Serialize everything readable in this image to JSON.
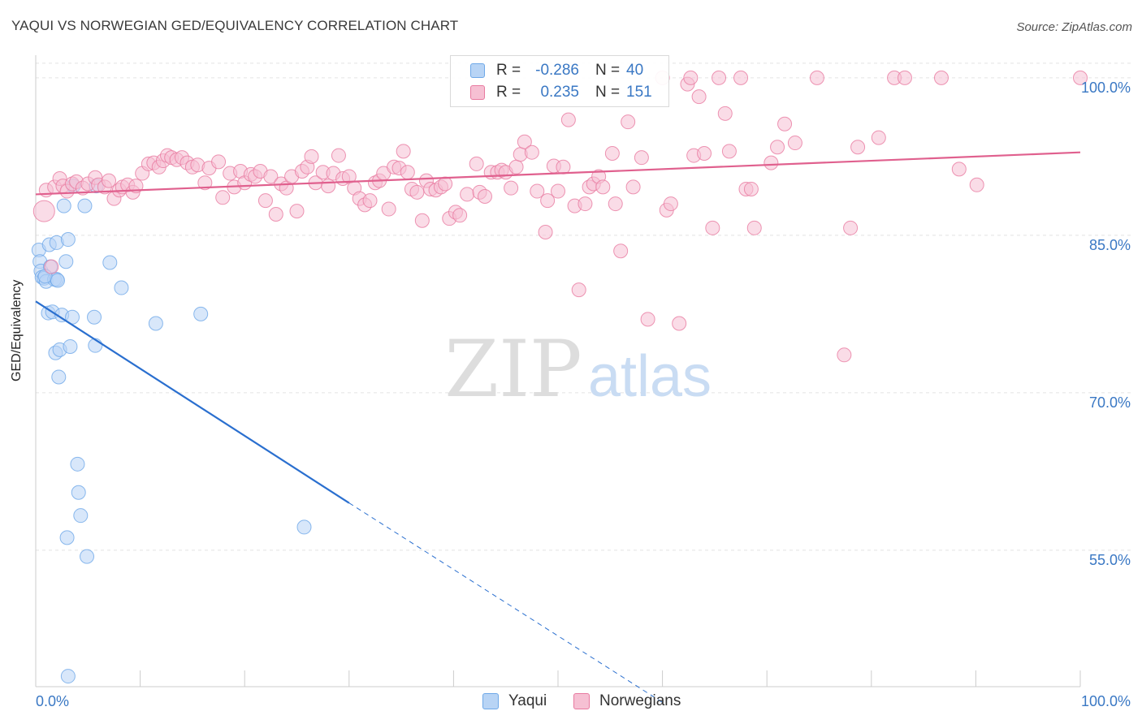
{
  "title": "YAQUI VS NORWEGIAN GED/EQUIVALENCY CORRELATION CHART",
  "source": "Source: ZipAtlas.com",
  "watermark": {
    "zip": "ZIP",
    "atlas": "atlas"
  },
  "colors": {
    "blue": "#6ea8e8",
    "blue_fill": "#b8d4f5",
    "blue_line": "#2a6fcf",
    "pink": "#e87aa0",
    "pink_fill": "#f6c0d3",
    "pink_line": "#e0608e",
    "axis_text": "#3a78c4",
    "grid": "#e3e3e3"
  },
  "legend": {
    "rows": [
      {
        "r_label": "R =",
        "r_value": "-0.286",
        "n_label": "N =",
        "n_value": "40"
      },
      {
        "r_label": "R =",
        "r_value": "0.235",
        "n_label": "N =",
        "n_value": "151"
      }
    ]
  },
  "bottom_legend": {
    "yaqui": "Yaqui",
    "norwegians": "Norwegians"
  },
  "chart_data": {
    "type": "scatter",
    "title": "YAQUI VS NORWEGIAN GED/EQUIVALENCY CORRELATION CHART",
    "xlabel": "",
    "ylabel": "GED/Equivalency",
    "xlim": [
      0,
      100
    ],
    "ylim": [
      42,
      102
    ],
    "x_tick_labels": {
      "left": "0.0%",
      "right": "100.0%"
    },
    "y_ticks": [
      {
        "value": 55,
        "label": "55.0%"
      },
      {
        "value": 70,
        "label": "70.0%"
      },
      {
        "value": 85,
        "label": "85.0%"
      },
      {
        "value": 100,
        "label": "100.0%"
      }
    ],
    "grid": true,
    "series": [
      {
        "name": "Yaqui",
        "trend": {
          "x0": 0,
          "y0": 78.7,
          "x1": 30,
          "y1": 59.5,
          "dash_to_x": 60,
          "dash_to_y": 40.5
        },
        "points": [
          [
            0.3,
            83.6
          ],
          [
            0.4,
            82.5
          ],
          [
            0.5,
            81.6
          ],
          [
            0.6,
            81.0
          ],
          [
            0.8,
            80.9
          ],
          [
            1.0,
            80.6
          ],
          [
            1.2,
            77.6
          ],
          [
            1.3,
            84.1
          ],
          [
            1.4,
            82.0
          ],
          [
            1.6,
            77.7
          ],
          [
            1.8,
            80.8
          ],
          [
            1.9,
            73.8
          ],
          [
            2.0,
            84.3
          ],
          [
            2.0,
            80.8
          ],
          [
            2.2,
            71.5
          ],
          [
            2.3,
            74.1
          ],
          [
            2.5,
            77.4
          ],
          [
            2.7,
            87.8
          ],
          [
            2.9,
            82.5
          ],
          [
            3.1,
            84.6
          ],
          [
            3.3,
            74.4
          ],
          [
            3.5,
            77.2
          ],
          [
            3.6,
            89.7
          ],
          [
            4.0,
            63.2
          ],
          [
            4.1,
            60.5
          ],
          [
            4.3,
            58.3
          ],
          [
            4.7,
            87.8
          ],
          [
            4.9,
            54.4
          ],
          [
            3.0,
            56.2
          ],
          [
            3.1,
            43.0
          ],
          [
            5.6,
            77.2
          ],
          [
            5.7,
            74.5
          ],
          [
            5.8,
            89.7
          ],
          [
            7.1,
            82.4
          ],
          [
            8.2,
            80.0
          ],
          [
            11.5,
            76.6
          ],
          [
            15.8,
            77.5
          ],
          [
            25.7,
            57.2
          ],
          [
            0.9,
            81.1
          ],
          [
            2.1,
            80.7
          ]
        ]
      },
      {
        "name": "Norwegians",
        "trend": {
          "x0": 0,
          "y0": 88.9,
          "x1": 100,
          "y1": 92.9
        },
        "points": [
          [
            0.8,
            87.3
          ],
          [
            1.0,
            89.3
          ],
          [
            1.5,
            82.0
          ],
          [
            1.8,
            89.6
          ],
          [
            2.3,
            90.4
          ],
          [
            2.6,
            89.7
          ],
          [
            3.0,
            89.2
          ],
          [
            3.5,
            89.9
          ],
          [
            3.9,
            90.1
          ],
          [
            4.5,
            89.5
          ],
          [
            5.0,
            89.9
          ],
          [
            5.7,
            90.5
          ],
          [
            6.0,
            89.8
          ],
          [
            6.6,
            89.6
          ],
          [
            7.0,
            90.2
          ],
          [
            7.5,
            88.5
          ],
          [
            8.0,
            89.3
          ],
          [
            8.3,
            89.6
          ],
          [
            8.8,
            89.8
          ],
          [
            9.3,
            89.1
          ],
          [
            9.6,
            89.7
          ],
          [
            10.2,
            90.9
          ],
          [
            10.8,
            91.8
          ],
          [
            11.3,
            91.9
          ],
          [
            11.8,
            91.5
          ],
          [
            12.2,
            92.1
          ],
          [
            12.6,
            92.6
          ],
          [
            13.0,
            92.4
          ],
          [
            13.5,
            92.2
          ],
          [
            14.0,
            92.4
          ],
          [
            14.5,
            91.9
          ],
          [
            15.0,
            91.5
          ],
          [
            15.5,
            91.7
          ],
          [
            16.2,
            90.0
          ],
          [
            16.6,
            91.4
          ],
          [
            17.5,
            92.0
          ],
          [
            17.9,
            88.6
          ],
          [
            18.6,
            90.9
          ],
          [
            19.0,
            89.6
          ],
          [
            19.6,
            91.1
          ],
          [
            20.0,
            90.0
          ],
          [
            20.6,
            90.8
          ],
          [
            21.0,
            90.6
          ],
          [
            21.5,
            91.1
          ],
          [
            22.0,
            88.3
          ],
          [
            22.5,
            90.6
          ],
          [
            23.0,
            87.0
          ],
          [
            23.5,
            89.9
          ],
          [
            24.0,
            89.5
          ],
          [
            24.5,
            90.6
          ],
          [
            25.0,
            87.3
          ],
          [
            25.5,
            91.1
          ],
          [
            26.0,
            91.5
          ],
          [
            26.4,
            92.5
          ],
          [
            26.8,
            90.0
          ],
          [
            27.5,
            91.0
          ],
          [
            28.0,
            89.7
          ],
          [
            28.5,
            90.9
          ],
          [
            29.0,
            92.6
          ],
          [
            29.4,
            90.4
          ],
          [
            30.0,
            90.6
          ],
          [
            30.5,
            89.5
          ],
          [
            31.0,
            88.5
          ],
          [
            31.5,
            87.9
          ],
          [
            32.0,
            88.3
          ],
          [
            32.5,
            90.0
          ],
          [
            32.9,
            90.2
          ],
          [
            33.3,
            90.9
          ],
          [
            33.8,
            87.5
          ],
          [
            34.3,
            91.5
          ],
          [
            34.8,
            91.4
          ],
          [
            35.2,
            93.0
          ],
          [
            35.6,
            91.0
          ],
          [
            36.0,
            89.4
          ],
          [
            36.5,
            89.1
          ],
          [
            37.0,
            86.4
          ],
          [
            37.4,
            90.2
          ],
          [
            37.8,
            89.4
          ],
          [
            38.3,
            89.3
          ],
          [
            38.8,
            89.6
          ],
          [
            39.2,
            89.9
          ],
          [
            39.6,
            86.6
          ],
          [
            40.2,
            87.2
          ],
          [
            40.6,
            86.9
          ],
          [
            41.3,
            88.9
          ],
          [
            42.2,
            91.8
          ],
          [
            42.5,
            89.1
          ],
          [
            43.0,
            88.7
          ],
          [
            43.6,
            91.0
          ],
          [
            44.2,
            91.0
          ],
          [
            44.6,
            91.2
          ],
          [
            45.0,
            91.0
          ],
          [
            45.5,
            89.5
          ],
          [
            46.0,
            91.5
          ],
          [
            46.4,
            92.7
          ],
          [
            46.8,
            93.9
          ],
          [
            47.5,
            92.9
          ],
          [
            48.0,
            89.2
          ],
          [
            48.8,
            85.3
          ],
          [
            49.0,
            88.3
          ],
          [
            49.6,
            91.6
          ],
          [
            50.0,
            89.2
          ],
          [
            50.5,
            91.5
          ],
          [
            51.0,
            96.0
          ],
          [
            51.6,
            87.8
          ],
          [
            52.0,
            79.8
          ],
          [
            52.6,
            88.0
          ],
          [
            53.0,
            89.6
          ],
          [
            53.4,
            89.9
          ],
          [
            53.9,
            90.6
          ],
          [
            54.3,
            89.6
          ],
          [
            55.2,
            92.8
          ],
          [
            55.5,
            88.0
          ],
          [
            56.0,
            83.5
          ],
          [
            56.7,
            95.8
          ],
          [
            57.2,
            89.6
          ],
          [
            58.0,
            92.4
          ],
          [
            58.6,
            77.0
          ],
          [
            60.0,
            100.0
          ],
          [
            60.4,
            87.4
          ],
          [
            60.8,
            88.0
          ],
          [
            61.6,
            76.6
          ],
          [
            62.4,
            99.4
          ],
          [
            62.7,
            100.0
          ],
          [
            63.0,
            92.6
          ],
          [
            63.5,
            98.2
          ],
          [
            64.0,
            92.8
          ],
          [
            64.8,
            85.7
          ],
          [
            65.4,
            100.0
          ],
          [
            66.0,
            96.6
          ],
          [
            66.4,
            93.0
          ],
          [
            67.5,
            100.0
          ],
          [
            68.0,
            89.4
          ],
          [
            68.5,
            89.4
          ],
          [
            68.8,
            85.7
          ],
          [
            70.4,
            91.9
          ],
          [
            71.0,
            93.4
          ],
          [
            71.7,
            95.6
          ],
          [
            72.7,
            93.8
          ],
          [
            74.8,
            100.0
          ],
          [
            77.4,
            73.6
          ],
          [
            78.0,
            85.7
          ],
          [
            78.7,
            93.4
          ],
          [
            80.7,
            94.3
          ],
          [
            82.2,
            100.0
          ],
          [
            83.2,
            100.0
          ],
          [
            86.7,
            100.0
          ],
          [
            88.4,
            91.3
          ],
          [
            90.1,
            89.8
          ],
          [
            100.0,
            100.0
          ]
        ]
      }
    ]
  }
}
